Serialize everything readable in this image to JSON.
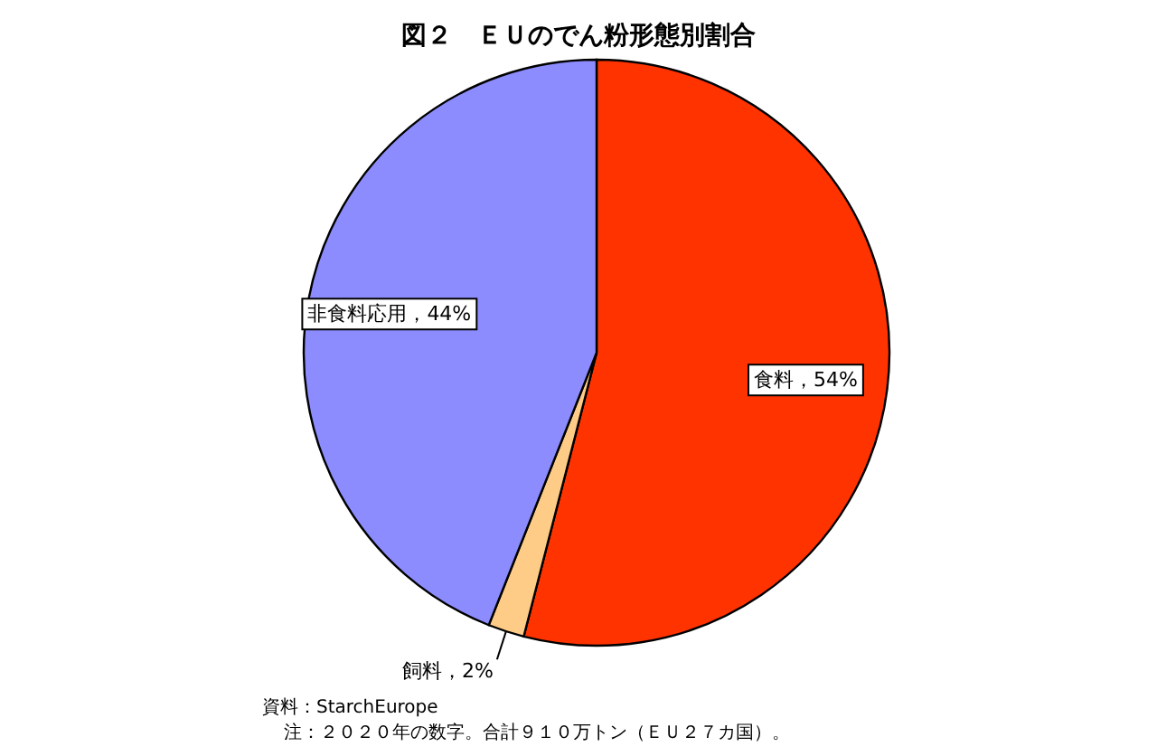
{
  "chart_data": {
    "type": "pie",
    "title": "図２　ＥＵのでん粉形態別割合",
    "categories": [
      "食料",
      "飼料",
      "非食料応用"
    ],
    "values": [
      54,
      2,
      44
    ],
    "colors": [
      "#ff3300",
      "#ffcc88",
      "#8c8cff"
    ],
    "value_labels": [
      "，54%",
      "，2%",
      "，44%"
    ],
    "annotations": [
      "資料：StarchEurope",
      "注：２０２０年の数字。合計９１０万トン（ＥＵ２７カ国）。"
    ]
  }
}
